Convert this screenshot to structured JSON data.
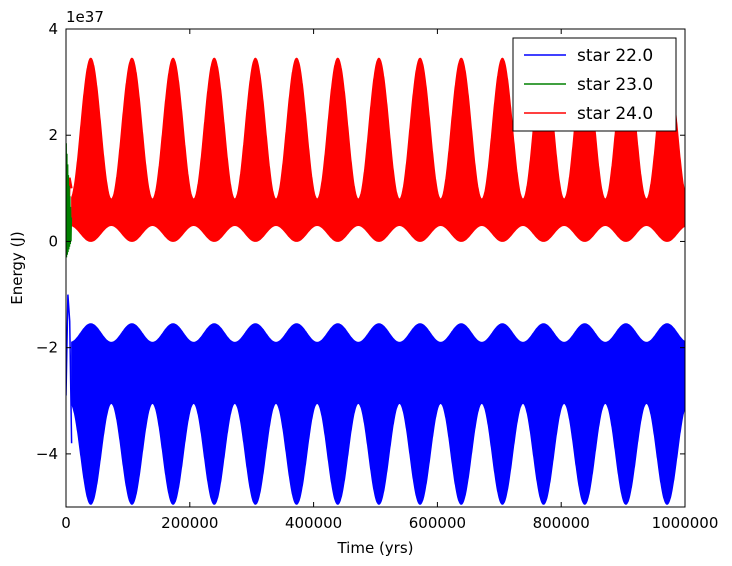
{
  "chart_data": {
    "type": "line",
    "title": "",
    "xlabel": "Time (yrs)",
    "ylabel": "Energy (J)",
    "y_offset_text": "1e37",
    "y_scale_factor": 1e+37,
    "xlim": [
      0,
      1000000
    ],
    "ylim": [
      -5,
      4
    ],
    "x_ticks": [
      0,
      200000,
      400000,
      600000,
      800000,
      1000000
    ],
    "x_tick_labels": [
      "0",
      "200000",
      "400000",
      "600000",
      "800000",
      "1000000"
    ],
    "y_ticks": [
      -4,
      -2,
      0,
      2,
      4
    ],
    "y_tick_labels": [
      "−4",
      "−2",
      "0",
      "2",
      "4"
    ],
    "grid": false,
    "legend_position": "top-right",
    "series": [
      {
        "name": "star 22.0",
        "color": "#0000ff",
        "description_values": {
          "envelope_period_yrs": 66500,
          "first_trough_x": 40000,
          "upper_band_min": -1.9,
          "upper_band_max": -1.55,
          "lower_envelope_min": -4.95,
          "lower_envelope_max": -3.05,
          "initial_transient": {
            "x": [
              0,
              3000,
              6000,
              9000
            ],
            "y": [
              -2.9,
              -1.0,
              -1.5,
              -3.8
            ]
          }
        }
      },
      {
        "name": "star 23.0",
        "color": "#008000",
        "description_values": {
          "transient_x_max": 9000,
          "transient_y_min": -0.35,
          "transient_y_max": 1.95
        }
      },
      {
        "name": "star 24.0",
        "color": "#ff0000",
        "description_values": {
          "envelope_period_yrs": 66500,
          "first_peak_x": 40000,
          "lower_band_min": 0.0,
          "lower_band_max": 0.3,
          "upper_envelope_min": 0.8,
          "upper_envelope_max": 3.45
        }
      }
    ]
  }
}
